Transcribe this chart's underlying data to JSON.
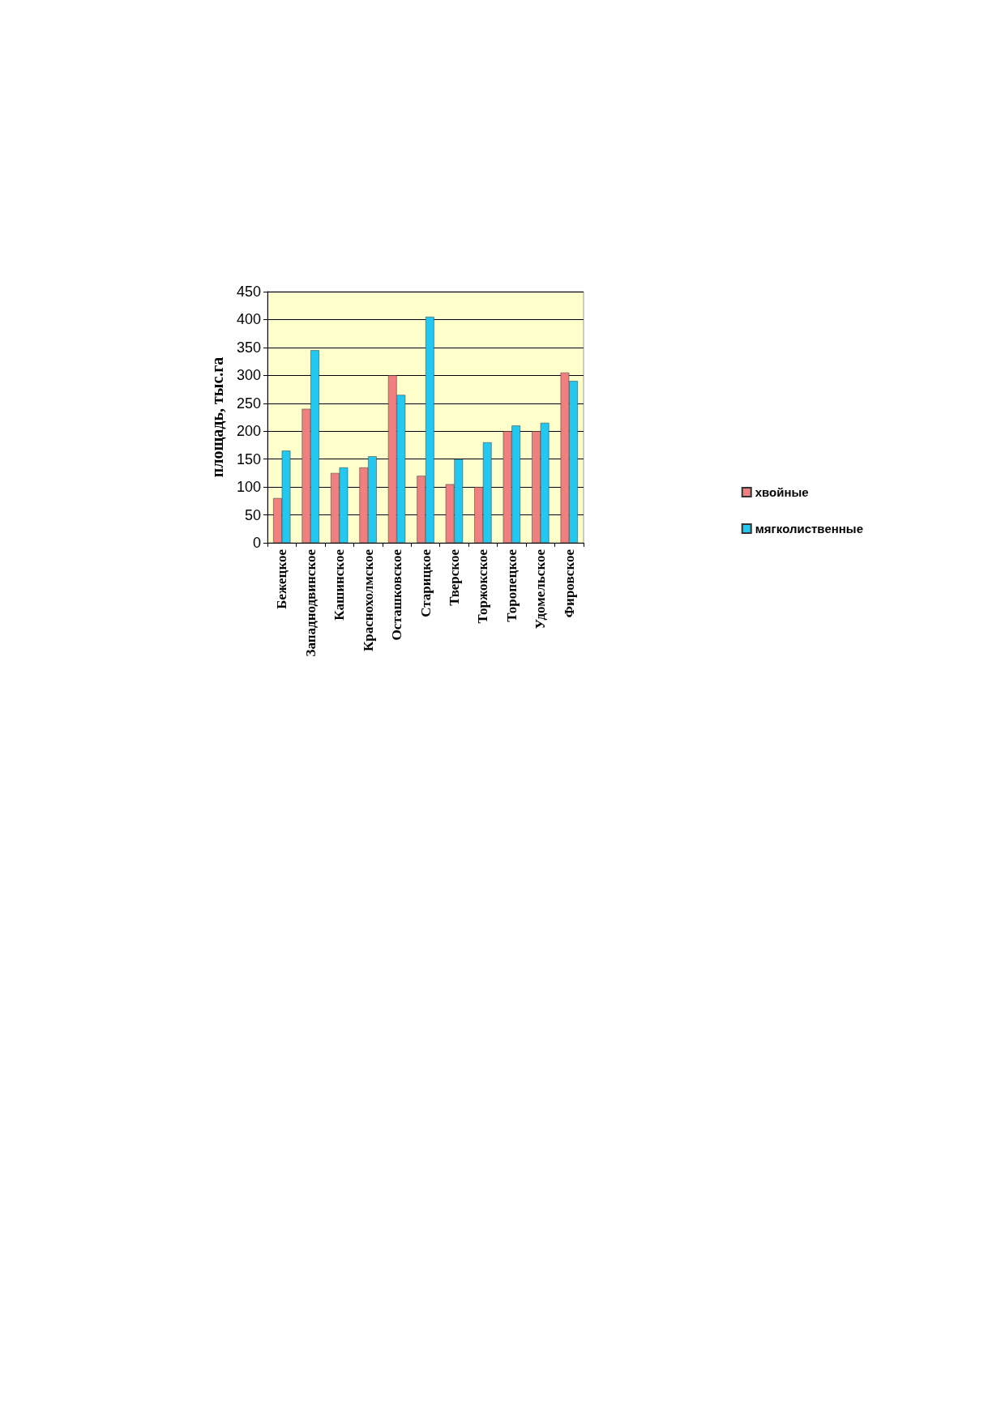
{
  "chart_data": {
    "type": "bar",
    "ylabel": "площадь, тыс.га",
    "categories": [
      "Бежецкое",
      "Западнодвинское",
      "Кашинское",
      "Краснохолмское",
      "Осташковское",
      "Старицкое",
      "Тверское",
      "Торжокское",
      "Торопецкое",
      "Удомельское",
      "Фировское"
    ],
    "series": [
      {
        "name": "хвойные",
        "color": "#f08080",
        "values": [
          80,
          240,
          125,
          135,
          300,
          120,
          105,
          100,
          200,
          200,
          305
        ]
      },
      {
        "name": "мягколиственные",
        "color": "#22c8f0",
        "values": [
          165,
          345,
          135,
          155,
          265,
          405,
          150,
          180,
          210,
          215,
          290
        ]
      }
    ],
    "ylim": [
      0,
      450
    ],
    "yticks": [
      0,
      50,
      100,
      150,
      200,
      250,
      300,
      350,
      400,
      450
    ],
    "grid": "y",
    "legend": "right"
  }
}
